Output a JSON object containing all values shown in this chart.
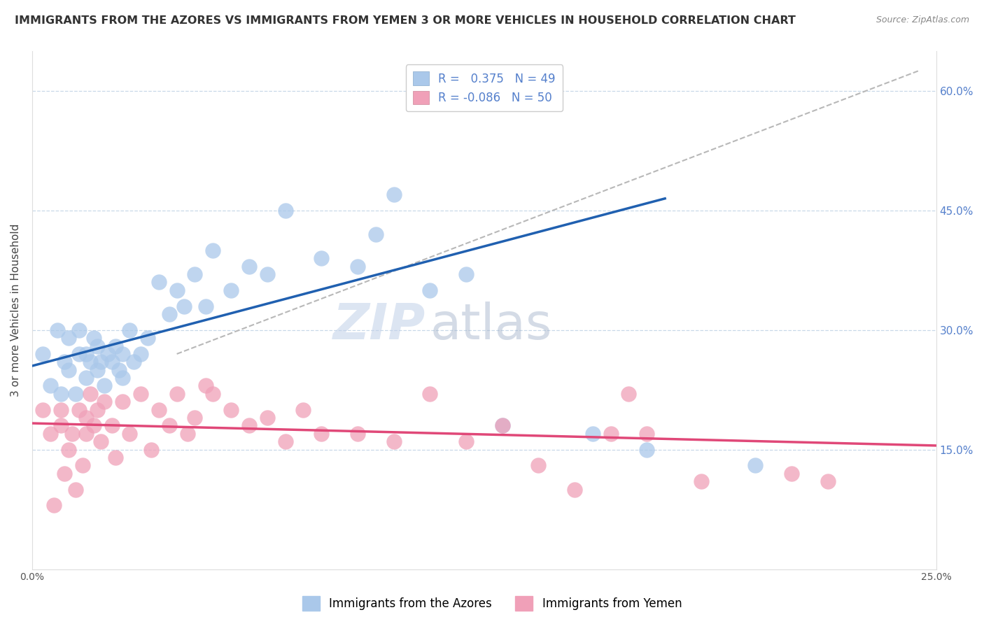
{
  "title": "IMMIGRANTS FROM THE AZORES VS IMMIGRANTS FROM YEMEN 3 OR MORE VEHICLES IN HOUSEHOLD CORRELATION CHART",
  "source": "Source: ZipAtlas.com",
  "ylabel": "3 or more Vehicles in Household",
  "legend_label_blue": "Immigrants from the Azores",
  "legend_label_pink": "Immigrants from Yemen",
  "R_blue": 0.375,
  "N_blue": 49,
  "R_pink": -0.086,
  "N_pink": 50,
  "xlim": [
    0.0,
    0.25
  ],
  "ylim": [
    0.0,
    0.65
  ],
  "yticks_right": [
    0.15,
    0.3,
    0.45,
    0.6
  ],
  "ytick_right_labels": [
    "15.0%",
    "30.0%",
    "45.0%",
    "60.0%"
  ],
  "xticks": [
    0.0,
    0.05,
    0.1,
    0.15,
    0.2,
    0.25
  ],
  "xtick_labels": [
    "0.0%",
    "",
    "",
    "",
    "",
    "25.0%"
  ],
  "blue_x": [
    0.003,
    0.005,
    0.007,
    0.008,
    0.009,
    0.01,
    0.01,
    0.012,
    0.013,
    0.013,
    0.015,
    0.015,
    0.016,
    0.017,
    0.018,
    0.018,
    0.019,
    0.02,
    0.021,
    0.022,
    0.023,
    0.024,
    0.025,
    0.025,
    0.027,
    0.028,
    0.03,
    0.032,
    0.035,
    0.038,
    0.04,
    0.042,
    0.045,
    0.048,
    0.05,
    0.055,
    0.06,
    0.065,
    0.07,
    0.08,
    0.09,
    0.095,
    0.1,
    0.11,
    0.12,
    0.13,
    0.155,
    0.17,
    0.2
  ],
  "blue_y": [
    0.27,
    0.23,
    0.3,
    0.22,
    0.26,
    0.25,
    0.29,
    0.22,
    0.27,
    0.3,
    0.24,
    0.27,
    0.26,
    0.29,
    0.25,
    0.28,
    0.26,
    0.23,
    0.27,
    0.26,
    0.28,
    0.25,
    0.24,
    0.27,
    0.3,
    0.26,
    0.27,
    0.29,
    0.36,
    0.32,
    0.35,
    0.33,
    0.37,
    0.33,
    0.4,
    0.35,
    0.38,
    0.37,
    0.45,
    0.39,
    0.38,
    0.42,
    0.47,
    0.35,
    0.37,
    0.18,
    0.17,
    0.15,
    0.13
  ],
  "pink_x": [
    0.003,
    0.005,
    0.006,
    0.008,
    0.008,
    0.009,
    0.01,
    0.011,
    0.012,
    0.013,
    0.014,
    0.015,
    0.015,
    0.016,
    0.017,
    0.018,
    0.019,
    0.02,
    0.022,
    0.023,
    0.025,
    0.027,
    0.03,
    0.033,
    0.035,
    0.038,
    0.04,
    0.043,
    0.045,
    0.048,
    0.05,
    0.055,
    0.06,
    0.065,
    0.07,
    0.075,
    0.08,
    0.09,
    0.1,
    0.11,
    0.12,
    0.13,
    0.14,
    0.15,
    0.16,
    0.165,
    0.17,
    0.185,
    0.21,
    0.22
  ],
  "pink_y": [
    0.2,
    0.17,
    0.08,
    0.18,
    0.2,
    0.12,
    0.15,
    0.17,
    0.1,
    0.2,
    0.13,
    0.17,
    0.19,
    0.22,
    0.18,
    0.2,
    0.16,
    0.21,
    0.18,
    0.14,
    0.21,
    0.17,
    0.22,
    0.15,
    0.2,
    0.18,
    0.22,
    0.17,
    0.19,
    0.23,
    0.22,
    0.2,
    0.18,
    0.19,
    0.16,
    0.2,
    0.17,
    0.17,
    0.16,
    0.22,
    0.16,
    0.18,
    0.13,
    0.1,
    0.17,
    0.22,
    0.17,
    0.11,
    0.12,
    0.11
  ],
  "blue_line_x": [
    0.0,
    0.175
  ],
  "blue_line_y": [
    0.255,
    0.465
  ],
  "pink_line_x": [
    0.0,
    0.25
  ],
  "pink_line_y": [
    0.183,
    0.155
  ],
  "ref_line_x": [
    0.04,
    0.245
  ],
  "ref_line_y": [
    0.27,
    0.625
  ],
  "watermark_zip": "ZIP",
  "watermark_atlas": "atlas",
  "color_blue": "#aac8ea",
  "color_blue_line": "#2060b0",
  "color_pink": "#f0a0b8",
  "color_pink_line": "#e04878",
  "color_ref_line": "#b8b8b8",
  "background_color": "#ffffff",
  "title_fontsize": 11.5,
  "axis_label_fontsize": 11,
  "tick_fontsize": 10,
  "legend_fontsize": 12,
  "watermark_fontsize_zip": 52,
  "watermark_fontsize_atlas": 52
}
